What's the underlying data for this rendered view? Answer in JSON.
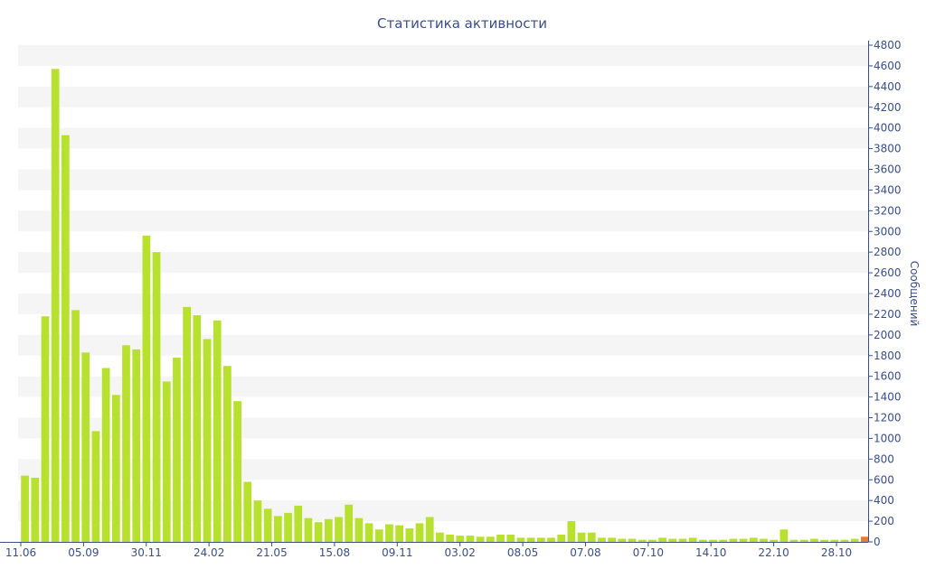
{
  "chart_data": {
    "type": "bar",
    "title": "Статистика активности",
    "ylabel": "Сообщений",
    "ylim": [
      0,
      4800
    ],
    "y_ticks": [
      0,
      200,
      400,
      600,
      800,
      1000,
      1200,
      1400,
      1600,
      1800,
      2000,
      2200,
      2400,
      2600,
      2800,
      3000,
      3200,
      3400,
      3600,
      3800,
      4000,
      4200,
      4400,
      4600,
      4800
    ],
    "x_tick_labels": [
      "11.06",
      "05.09",
      "30.11",
      "24.02",
      "21.05",
      "15.08",
      "09.11",
      "03.02",
      "08.05",
      "07.08",
      "07.10",
      "14.10",
      "22.10",
      "28.10"
    ],
    "grid": "horizontal bands",
    "colors": {
      "bar": "#b8e02e",
      "last_bar": "#e87b2e",
      "text": "#3a4f8a",
      "axis": "#3a4f8a",
      "band": "#f5f5f5"
    },
    "values": [
      640,
      620,
      2180,
      4570,
      3930,
      2240,
      1830,
      1070,
      1680,
      1420,
      1900,
      1860,
      2960,
      2800,
      1550,
      1780,
      2270,
      2190,
      1960,
      2140,
      1700,
      1360,
      580,
      400,
      320,
      250,
      280,
      350,
      230,
      190,
      220,
      240,
      360,
      230,
      180,
      120,
      170,
      160,
      130,
      180,
      240,
      90,
      70,
      60,
      60,
      50,
      50,
      70,
      70,
      40,
      40,
      40,
      40,
      70,
      200,
      90,
      90,
      40,
      40,
      30,
      30,
      20,
      20,
      40,
      30,
      30,
      40,
      20,
      20,
      20,
      30,
      30,
      40,
      30,
      20,
      120,
      20,
      20,
      30,
      20,
      20,
      20,
      30,
      50
    ]
  }
}
